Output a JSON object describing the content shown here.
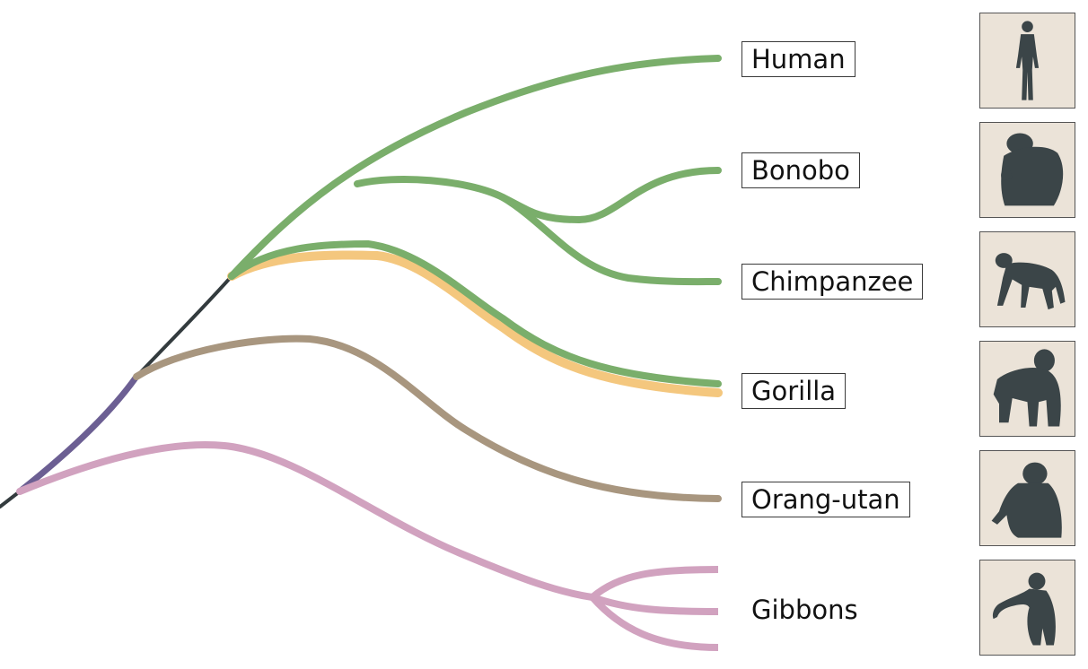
{
  "colors": {
    "stem": "#333b3e",
    "great_apes": "#6c5f93",
    "hominini": "#7aae6b",
    "homininae_alt": "#f4c77e",
    "pongo": "#a8967f",
    "gibbons": "#d1a2bf",
    "thumb_bg": "#ebe3d8",
    "silhouette": "#3b4548"
  },
  "taxa": [
    {
      "label": "Human",
      "boxed": true,
      "icon": "human-silhouette-icon"
    },
    {
      "label": "Bonobo",
      "boxed": true,
      "icon": "bonobo-silhouette-icon"
    },
    {
      "label": "Chimpanzee",
      "boxed": true,
      "icon": "chimpanzee-silhouette-icon"
    },
    {
      "label": "Gorilla",
      "boxed": true,
      "icon": "gorilla-silhouette-icon"
    },
    {
      "label": "Orang-utan",
      "boxed": true,
      "icon": "orangutan-silhouette-icon"
    },
    {
      "label": "Gibbons",
      "boxed": false,
      "icon": "gibbon-silhouette-icon"
    }
  ]
}
